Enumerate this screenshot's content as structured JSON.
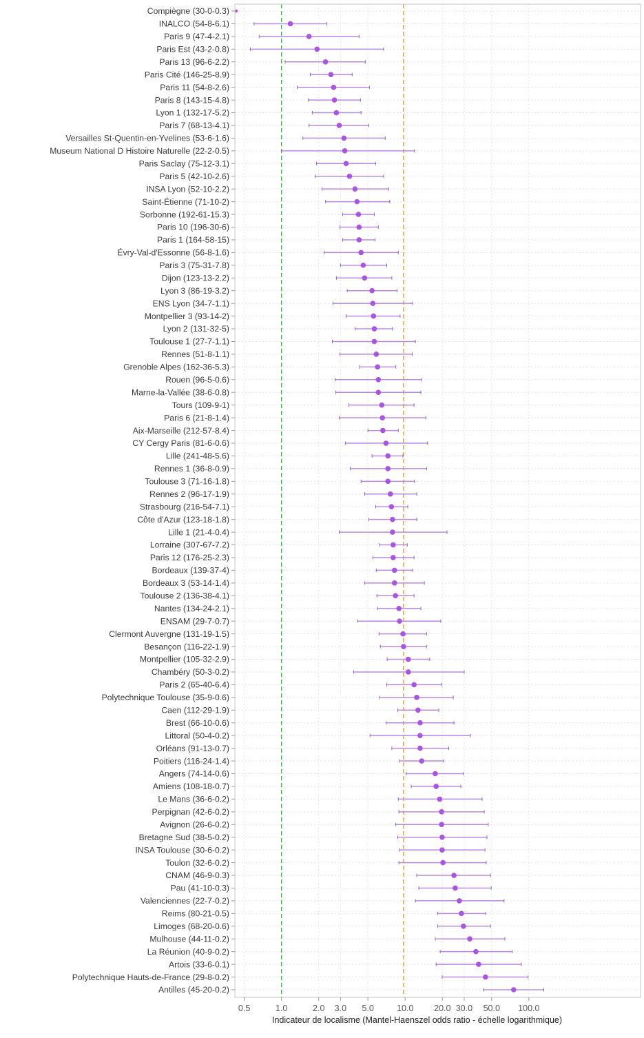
{
  "chart_data": {
    "type": "forest",
    "title": "",
    "xlabel": "Indicateur de localisme (Mantel-Haenszel odds ratio - échelle logarithmique)",
    "ylabel": "",
    "xscale": "log",
    "xlim": [
      0.42,
      800
    ],
    "xticks": [
      0.5,
      1.0,
      2.0,
      3.0,
      5.0,
      10.0,
      20.0,
      30.0,
      50.0,
      100.0
    ],
    "xtick_labels": [
      "0.5",
      "1.0",
      "2.0",
      "3.0",
      "5.0",
      "10.0",
      "20.0",
      "30.0",
      "50.0",
      "100.0"
    ],
    "grid": true,
    "reference_lines": [
      {
        "name": "null-effect",
        "value": 1.0,
        "color": "#3cb44b",
        "style": "dashed"
      },
      {
        "name": "reference",
        "value": 9.7,
        "color": "#d9a441",
        "style": "dashed"
      }
    ],
    "point_color": "#a855e0",
    "ci_color": "#b98ae0",
    "rows": [
      {
        "label": "Compiègne (30-0-0.3)",
        "or": 0.43,
        "lo": null,
        "hi": null
      },
      {
        "label": "INALCO (54-8-6.1)",
        "or": 1.18,
        "lo": 0.6,
        "hi": 2.33
      },
      {
        "label": "Paris 9 (47-4-2.1)",
        "or": 1.67,
        "lo": 0.66,
        "hi": 4.24
      },
      {
        "label": "Paris Est (43-2-0.8)",
        "or": 1.94,
        "lo": 0.56,
        "hi": 6.7
      },
      {
        "label": "Paris 13 (96-6-2.2)",
        "or": 2.27,
        "lo": 1.07,
        "hi": 4.76
      },
      {
        "label": "Paris Cité (146-25-8.9)",
        "or": 2.51,
        "lo": 1.71,
        "hi": 3.73
      },
      {
        "label": "Paris 11 (54-8-2.6)",
        "or": 2.64,
        "lo": 1.34,
        "hi": 5.14
      },
      {
        "label": "Paris 8 (143-15-4.8)",
        "or": 2.68,
        "lo": 1.65,
        "hi": 4.35
      },
      {
        "label": "Lyon 1 (132-17-5.2)",
        "or": 2.78,
        "lo": 1.78,
        "hi": 4.4
      },
      {
        "label": "Paris 7 (68-13-4.1)",
        "or": 2.93,
        "lo": 1.67,
        "hi": 5.08
      },
      {
        "label": "Versailles St-Quentin-en-Yvelines (53-6-1.6)",
        "or": 3.2,
        "lo": 1.49,
        "hi": 6.9
      },
      {
        "label": "Museum National D Histoire Naturelle (22-2-0.5)",
        "or": 3.25,
        "lo": 1.0,
        "hi": 11.9
      },
      {
        "label": "Paris Saclay (75-12-3.1)",
        "or": 3.33,
        "lo": 1.92,
        "hi": 5.77
      },
      {
        "label": "Paris 5 (42-10-2.6)",
        "or": 3.55,
        "lo": 1.87,
        "hi": 6.7
      },
      {
        "label": "INSA Lyon (52-10-2.2)",
        "or": 3.93,
        "lo": 2.13,
        "hi": 7.35
      },
      {
        "label": "Saint-Étienne (71-10-2)",
        "or": 4.08,
        "lo": 2.27,
        "hi": 7.5
      },
      {
        "label": "Sorbonne (192-61-15.3)",
        "or": 4.19,
        "lo": 3.12,
        "hi": 5.63
      },
      {
        "label": "Paris 10 (196-30-6)",
        "or": 4.24,
        "lo": 2.97,
        "hi": 6.07
      },
      {
        "label": "Paris 1 (164-58-15)",
        "or": 4.24,
        "lo": 3.12,
        "hi": 5.7
      },
      {
        "label": "Évry-Val-d'Essonne (56-8-1.6)",
        "or": 4.4,
        "lo": 2.21,
        "hi": 8.8
      },
      {
        "label": "Paris 3 (75-31-7.8)",
        "or": 4.58,
        "lo": 3.0,
        "hi": 7.1
      },
      {
        "label": "Dijon (123-13-2.2)",
        "or": 4.7,
        "lo": 2.78,
        "hi": 7.8
      },
      {
        "label": "Lyon 3 (86-19-3.2)",
        "or": 5.4,
        "lo": 3.4,
        "hi": 8.6
      },
      {
        "label": "ENS Lyon (34-7-1.1)",
        "or": 5.48,
        "lo": 2.61,
        "hi": 11.5
      },
      {
        "label": "Montpellier 3 (93-14-2)",
        "or": 5.55,
        "lo": 3.33,
        "hi": 9.1
      },
      {
        "label": "Lyon 2 (131-32-5)",
        "or": 5.63,
        "lo": 3.93,
        "hi": 7.9
      },
      {
        "label": "Toulouse 1 (27-7-1.1)",
        "or": 5.63,
        "lo": 2.58,
        "hi": 12.1
      },
      {
        "label": "Rennes (51-8-1.1)",
        "or": 5.84,
        "lo": 2.97,
        "hi": 11.4
      },
      {
        "label": "Grenoble Alpes (162-36-5.3)",
        "or": 5.98,
        "lo": 4.29,
        "hi": 8.4
      },
      {
        "label": "Rouen (96-5-0.6)",
        "or": 6.07,
        "lo": 2.71,
        "hi": 13.6
      },
      {
        "label": "Marne-la-Vallée (38-6-0.8)",
        "or": 6.07,
        "lo": 2.75,
        "hi": 13.4
      },
      {
        "label": "Tours (109-9-1)",
        "or": 6.47,
        "lo": 3.5,
        "hi": 11.8
      },
      {
        "label": "Paris 6 (21-8-1.4)",
        "or": 6.55,
        "lo": 2.93,
        "hi": 14.7
      },
      {
        "label": "Aix-Marseille (212-57-8.4)",
        "or": 6.6,
        "lo": 5.0,
        "hi": 8.8
      },
      {
        "label": "CY Cergy Paris (81-6-0.6)",
        "or": 7.0,
        "lo": 3.28,
        "hi": 15.2
      },
      {
        "label": "Lille (241-48-5.6)",
        "or": 7.25,
        "lo": 5.4,
        "hi": 9.6
      },
      {
        "label": "Rennes 1 (36-8-0.9)",
        "or": 7.25,
        "lo": 3.6,
        "hi": 14.9
      },
      {
        "label": "Toulouse 3 (71-16-1.8)",
        "or": 7.25,
        "lo": 4.4,
        "hi": 11.9
      },
      {
        "label": "Rennes 2 (96-17-1.9)",
        "or": 7.6,
        "lo": 4.7,
        "hi": 12.4
      },
      {
        "label": "Strasbourg (216-54-7.1)",
        "or": 7.75,
        "lo": 5.77,
        "hi": 10.5
      },
      {
        "label": "Côte d'Azur (123-18-1.8)",
        "or": 7.9,
        "lo": 5.08,
        "hi": 12.4
      },
      {
        "label": "Lille 1 (21-4-0.4)",
        "or": 7.9,
        "lo": 2.93,
        "hi": 21.8
      },
      {
        "label": "Lorraine (307-67-7.2)",
        "or": 8.0,
        "lo": 6.2,
        "hi": 10.4
      },
      {
        "label": "Paris 12 (176-25-2.3)",
        "or": 8.0,
        "lo": 5.48,
        "hi": 11.8
      },
      {
        "label": "Bordeaux (139-37-4)",
        "or": 8.2,
        "lo": 5.84,
        "hi": 11.5
      },
      {
        "label": "Bordeaux 3 (53-14-1.4)",
        "or": 8.2,
        "lo": 4.7,
        "hi": 14.3
      },
      {
        "label": "Toulouse 2 (136-38-4.1)",
        "or": 8.35,
        "lo": 5.91,
        "hi": 11.8
      },
      {
        "label": "Nantes (134-24-2.1)",
        "or": 8.9,
        "lo": 5.98,
        "hi": 13.4
      },
      {
        "label": "ENSAM (29-7-0.7)",
        "or": 9.0,
        "lo": 4.13,
        "hi": 19.4
      },
      {
        "label": "Clermont Auvergne (131-19-1.5)",
        "or": 9.6,
        "lo": 6.15,
        "hi": 14.9
      },
      {
        "label": "Besançon (116-22-1.9)",
        "or": 9.7,
        "lo": 6.3,
        "hi": 14.9
      },
      {
        "label": "Montpellier (105-32-2.9)",
        "or": 10.6,
        "lo": 7.15,
        "hi": 15.8
      },
      {
        "label": "Chambéry (50-3-0.2)",
        "or": 10.6,
        "lo": 3.83,
        "hi": 30.0
      },
      {
        "label": "Paris 2 (65-40-6.4)",
        "or": 11.8,
        "lo": 7.1,
        "hi": 19.7
      },
      {
        "label": "Polytechnique Toulouse (35-9-0.6)",
        "or": 12.4,
        "lo": 6.2,
        "hi": 24.5
      },
      {
        "label": "Caen (112-29-1.9)",
        "or": 12.7,
        "lo": 8.7,
        "hi": 18.7
      },
      {
        "label": "Brest (66-10-0.6)",
        "or": 13.2,
        "lo": 7.0,
        "hi": 24.8
      },
      {
        "label": "Littoral (50-4-0.2)",
        "or": 13.2,
        "lo": 5.2,
        "hi": 33.7
      },
      {
        "label": "Orléans (91-13-0.7)",
        "or": 13.2,
        "lo": 7.8,
        "hi": 22.5
      },
      {
        "label": "Poitiers (116-24-1.4)",
        "or": 13.6,
        "lo": 9.0,
        "hi": 20.5
      },
      {
        "label": "Angers (74-14-0.6)",
        "or": 17.5,
        "lo": 10.2,
        "hi": 29.6
      },
      {
        "label": "Amiens (108-18-0.7)",
        "or": 17.8,
        "lo": 11.2,
        "hi": 28.2
      },
      {
        "label": "Le Mans (36-6-0.2)",
        "or": 19.0,
        "lo": 8.8,
        "hi": 41.9
      },
      {
        "label": "Perpignan (42-6-0.2)",
        "or": 19.7,
        "lo": 8.9,
        "hi": 43.6
      },
      {
        "label": "Avignon (26-6-0.2)",
        "or": 19.7,
        "lo": 8.4,
        "hi": 47.0
      },
      {
        "label": "Bretagne Sud (38-5-0.2)",
        "or": 19.9,
        "lo": 8.7,
        "hi": 45.8
      },
      {
        "label": "INSA Toulouse (30-6-0.2)",
        "or": 19.9,
        "lo": 9.0,
        "hi": 44.2
      },
      {
        "label": "Toulon (32-6-0.2)",
        "or": 20.2,
        "lo": 8.9,
        "hi": 45.2
      },
      {
        "label": "CNAM (46-9-0.3)",
        "or": 24.8,
        "lo": 12.4,
        "hi": 49.0
      },
      {
        "label": "Pau (41-10-0.3)",
        "or": 25.4,
        "lo": 12.9,
        "hi": 49.6
      },
      {
        "label": "Valenciennes (22-7-0.2)",
        "or": 27.4,
        "lo": 12.1,
        "hi": 63.0
      },
      {
        "label": "Reims (80-21-0.5)",
        "or": 28.5,
        "lo": 18.3,
        "hi": 44.6
      },
      {
        "label": "Limoges (68-20-0.6)",
        "or": 29.6,
        "lo": 18.3,
        "hi": 49.0
      },
      {
        "label": "Mulhouse (44-11-0.2)",
        "or": 33.3,
        "lo": 17.5,
        "hi": 64.0
      },
      {
        "label": "La Réunion (40-9-0.2)",
        "or": 37.3,
        "lo": 19.2,
        "hi": 73.5
      },
      {
        "label": "Artois (33-6-0.1)",
        "or": 39.2,
        "lo": 17.8,
        "hi": 87.0
      },
      {
        "label": "Polytechnique Hauts-de-France (29-8-0.2)",
        "or": 44.6,
        "lo": 19.9,
        "hi": 98.6
      },
      {
        "label": "Antilles (45-20-0.2)",
        "or": 75.4,
        "lo": 43.0,
        "hi": 132.0
      }
    ]
  }
}
